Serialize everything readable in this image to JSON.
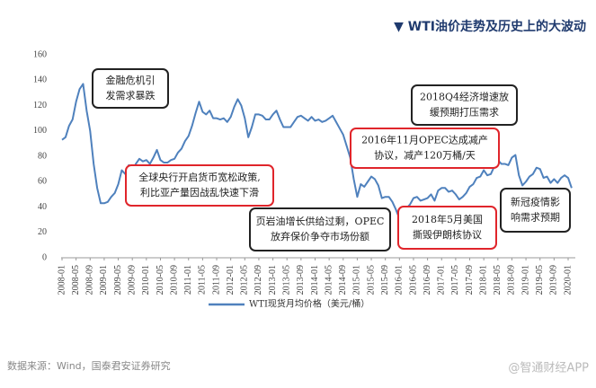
{
  "chart_data": {
    "type": "line",
    "title": "▼ WTI油价走势及历史上的大波动",
    "categories": [
      "2008-01",
      null,
      null,
      null,
      "2008-05",
      null,
      null,
      null,
      "2008-09",
      null,
      null,
      null,
      "2009-01",
      null,
      null,
      null,
      "2009-05",
      null,
      null,
      null,
      "2009-09",
      null,
      null,
      null,
      "2010-01",
      null,
      null,
      null,
      "2010-05",
      null,
      null,
      null,
      "2010-09",
      null,
      null,
      null,
      "2011-01",
      null,
      null,
      null,
      "2011-05",
      null,
      null,
      null,
      "2011-09",
      null,
      null,
      null,
      "2012-01",
      null,
      null,
      null,
      "2012-05",
      null,
      null,
      null,
      "2012-09",
      null,
      null,
      null,
      "2013-01",
      null,
      null,
      null,
      "2013-05",
      null,
      null,
      null,
      "2013-09",
      null,
      null,
      null,
      "2014-01",
      null,
      null,
      null,
      "2014-05",
      null,
      null,
      null,
      "2014-09",
      null,
      null,
      null,
      "2015-01",
      null,
      null,
      null,
      "2015-05",
      null,
      null,
      null,
      "2015-09",
      null,
      null,
      null,
      "2016-01",
      null,
      null,
      null,
      "2016-05",
      null,
      null,
      null,
      "2016-09",
      null,
      null,
      null,
      "2017-01",
      null,
      null,
      null,
      "2017-05",
      null,
      null,
      null,
      "2017-09",
      null,
      null,
      null,
      "2018-01",
      null,
      null,
      null,
      "2018-05",
      null,
      null,
      null,
      "2018-09",
      null,
      null,
      null,
      "2019-01",
      null,
      null,
      null,
      "2019-05",
      null,
      null,
      null,
      "2019-09",
      null,
      null,
      null,
      "2020-01",
      null
    ],
    "series": [
      {
        "name": "WTI现货月均价格（美元/桶）",
        "color": "#4f81bd",
        "values": [
          93,
          95,
          104,
          109,
          123,
          133,
          137,
          116,
          100,
          74,
          55,
          43,
          43,
          44,
          48,
          51,
          58,
          69,
          66,
          73,
          68,
          74,
          78,
          76,
          77,
          74,
          79,
          85,
          77,
          75,
          75,
          77,
          78,
          83,
          86,
          92,
          96,
          104,
          114,
          123,
          115,
          113,
          116,
          110,
          110,
          109,
          110,
          107,
          111,
          119,
          125,
          120,
          110,
          95,
          103,
          113,
          113,
          112,
          109,
          109,
          113,
          116,
          109,
          103,
          103,
          103,
          107,
          111,
          112,
          110,
          108,
          111,
          108,
          109,
          107,
          108,
          110,
          112,
          107,
          102,
          97,
          88,
          79,
          62,
          48,
          58,
          56,
          60,
          64,
          62,
          57,
          47,
          48,
          48,
          44,
          38,
          31,
          33,
          39,
          42,
          47,
          48,
          45,
          46,
          47,
          50,
          45,
          53,
          55,
          55,
          52,
          53,
          50,
          46,
          48,
          51,
          56,
          58,
          63,
          64,
          69,
          65,
          66,
          72,
          77,
          74,
          74,
          73,
          79,
          81,
          65,
          57,
          60,
          64,
          66,
          71,
          70,
          63,
          64,
          59,
          62,
          59,
          63,
          65,
          63,
          55
        ]
      }
    ],
    "ylim": [
      0,
      160
    ],
    "yticks": [
      0,
      20,
      40,
      60,
      80,
      100,
      120,
      140,
      160
    ],
    "annotations": [
      {
        "lines": [
          "金融危机引",
          "发需求暴跌"
        ],
        "border": "#222222"
      },
      {
        "lines": [
          "全球央行开启货币宽松政策,",
          "利比亚产量因战乱快速下滑"
        ],
        "border": "#e0252b"
      },
      {
        "lines": [
          "页岩油增长供给过剩，OPEC",
          "放弃保价争夺市场份额"
        ],
        "border": "#222222"
      },
      {
        "lines": [
          "2016年11月OPEC达成减产",
          "协议，减产120万桶/天"
        ],
        "border": "#e0252b"
      },
      {
        "lines": [
          "2018Q4经济增速放",
          "缓预期打压需求"
        ],
        "border": "#222222"
      },
      {
        "lines": [
          "2018年5月美国",
          "撕毁伊朗核协议"
        ],
        "border": "#e0252b"
      },
      {
        "lines": [
          "新冠疫情影",
          "响需求预期"
        ],
        "border": "#222222"
      }
    ],
    "source": "数据来源：Wind，国泰君安证券研究",
    "watermark": "@智通财经APP"
  }
}
